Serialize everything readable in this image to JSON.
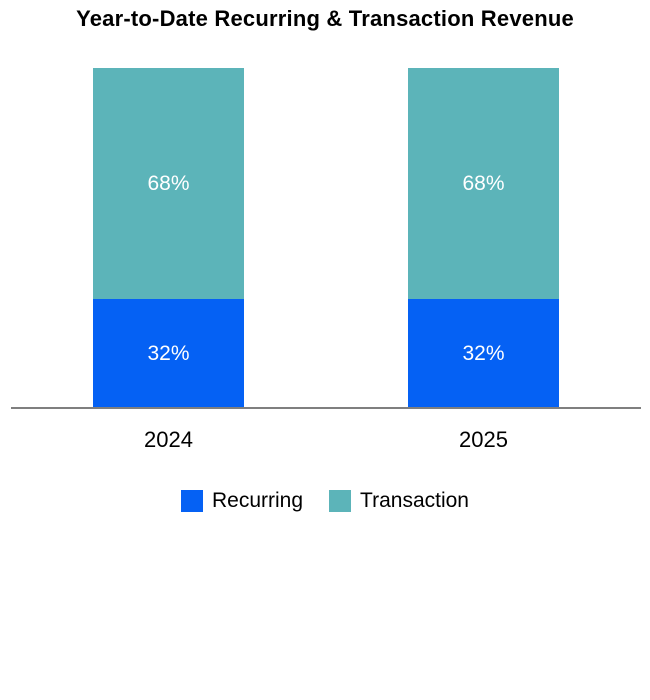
{
  "chart_data": {
    "type": "bar",
    "stacked": true,
    "title": "Year-to-Date Recurring & Transaction Revenue",
    "categories": [
      "2024",
      "2025"
    ],
    "series": [
      {
        "name": "Recurring",
        "color": "#0561F4",
        "values": [
          32,
          32
        ]
      },
      {
        "name": "Transaction",
        "color": "#5CB4B9",
        "values": [
          68,
          68
        ]
      }
    ],
    "value_format": "percent",
    "ylim": [
      0,
      100
    ],
    "grid": false,
    "legend_position": "bottom",
    "axis_line_color": "#7F7F7F"
  },
  "bars": [
    {
      "category": "2024",
      "segments": [
        {
          "series": "Transaction",
          "value": 68,
          "label": "68%",
          "color": "#5CB4B9"
        },
        {
          "series": "Recurring",
          "value": 32,
          "label": "32%",
          "color": "#0561F4"
        }
      ]
    },
    {
      "category": "2025",
      "segments": [
        {
          "series": "Transaction",
          "value": 68,
          "label": "68%",
          "color": "#5CB4B9"
        },
        {
          "series": "Recurring",
          "value": 32,
          "label": "32%",
          "color": "#0561F4"
        }
      ]
    }
  ],
  "legend": [
    {
      "label": "Recurring",
      "color": "#0561F4"
    },
    {
      "label": "Transaction",
      "color": "#5CB4B9"
    }
  ],
  "colors": {
    "recurring": "#0561F4",
    "transaction": "#5CB4B9",
    "axis": "#7F7F7F",
    "label_text": "#ffffff",
    "text": "#000000"
  }
}
